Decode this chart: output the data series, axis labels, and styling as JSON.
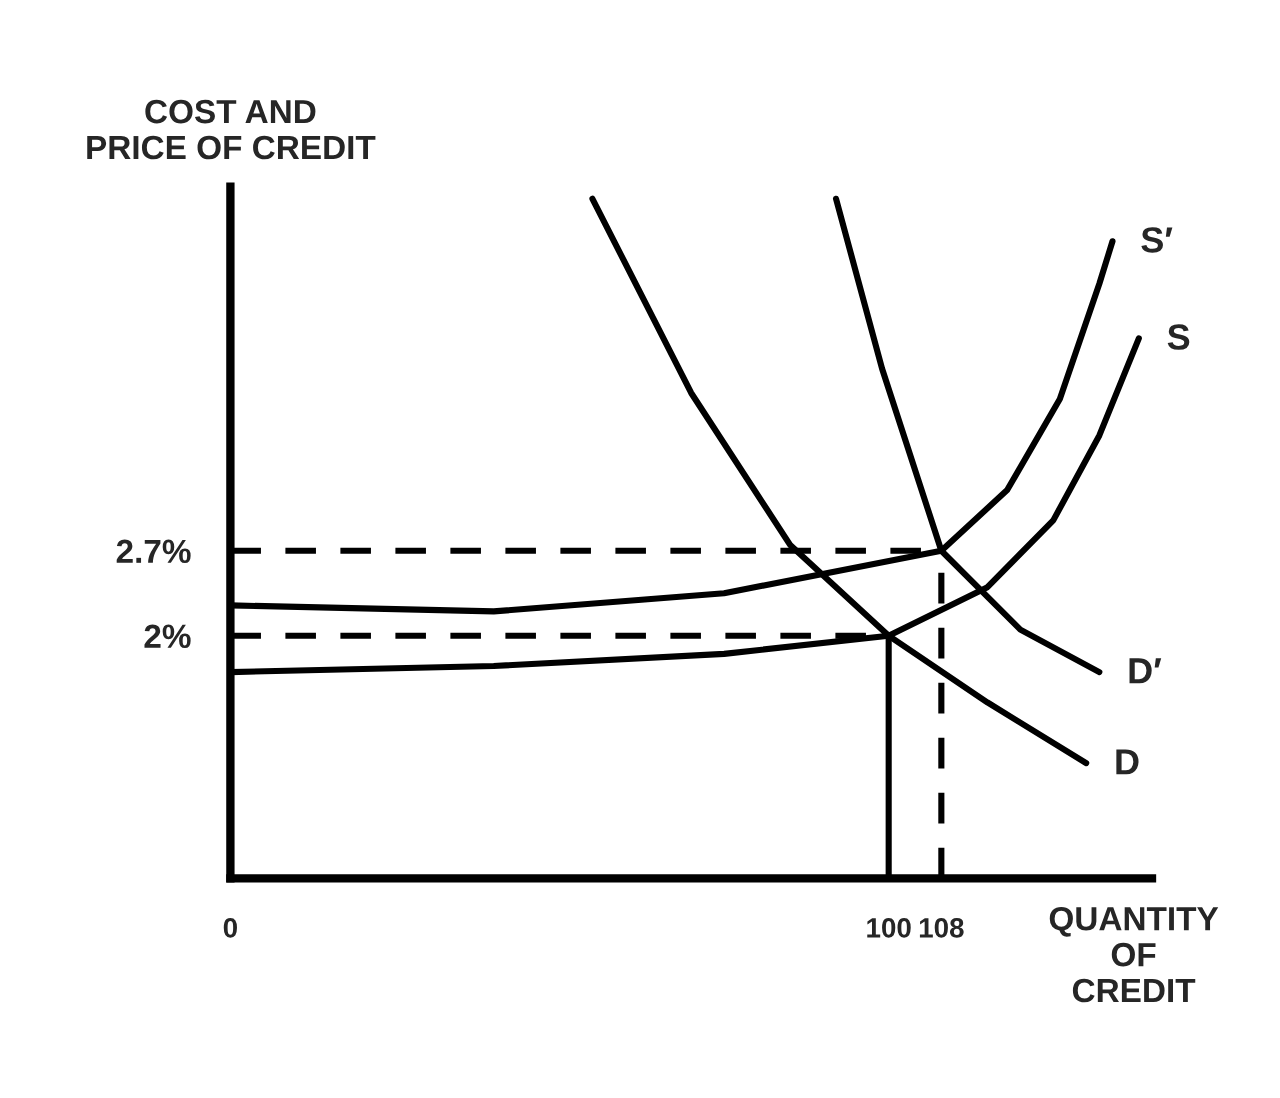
{
  "chart_data": {
    "type": "line",
    "xlabel": "QUANTITY\nOF\nCREDIT",
    "ylabel": "COST AND\nPRICE OF CREDIT",
    "xlim": [
      0,
      140
    ],
    "ylim": [
      0,
      5.7
    ],
    "xticks": [
      0,
      100,
      108
    ],
    "yticks": [
      {
        "value": 2,
        "label": "2%"
      },
      {
        "value": 2.7,
        "label": "2.7%"
      }
    ],
    "grid": false,
    "legend": false,
    "marker": "none",
    "series": [
      {
        "name": "S",
        "color": "#000000",
        "line_style": "solid",
        "x": [
          0,
          40,
          75,
          100,
          115,
          125,
          132,
          138
        ],
        "values": [
          1.7,
          1.75,
          1.85,
          2.0,
          2.4,
          2.95,
          3.65,
          4.45
        ]
      },
      {
        "name": "S′",
        "color": "#000000",
        "line_style": "solid",
        "x": [
          0,
          40,
          75,
          108,
          118,
          126,
          132,
          134
        ],
        "values": [
          2.25,
          2.2,
          2.35,
          2.7,
          3.2,
          3.95,
          4.9,
          5.25
        ]
      },
      {
        "name": "D",
        "color": "#000000",
        "line_style": "solid",
        "x": [
          55,
          70,
          85,
          100,
          115,
          130
        ],
        "values": [
          5.6,
          4.0,
          2.75,
          2.0,
          1.45,
          0.95
        ]
      },
      {
        "name": "D′",
        "color": "#000000",
        "line_style": "solid",
        "x": [
          92,
          99,
          108,
          120,
          132
        ],
        "values": [
          5.6,
          4.2,
          2.7,
          2.05,
          1.7
        ]
      },
      {
        "color": "#000000",
        "line_style": "dashed",
        "x": [
          0,
          100
        ],
        "values": [
          2,
          2
        ]
      },
      {
        "color": "#000000",
        "line_style": "dashed",
        "x": [
          0,
          108
        ],
        "values": [
          2.7,
          2.7
        ]
      },
      {
        "color": "#000000",
        "line_style": "solid",
        "x": [
          100,
          100
        ],
        "values": [
          0,
          2
        ]
      },
      {
        "color": "#000000",
        "line_style": "dashed",
        "x": [
          108,
          108
        ],
        "values": [
          0,
          2.7
        ]
      }
    ]
  }
}
